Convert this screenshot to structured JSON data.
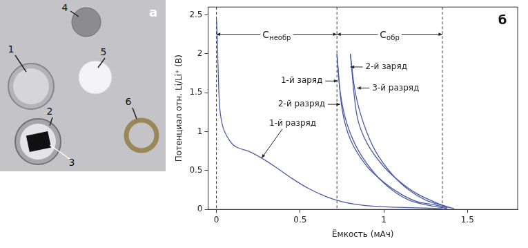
{
  "photo": {
    "letter": "a",
    "labels": [
      "1",
      "2",
      "3",
      "4",
      "5",
      "6"
    ]
  },
  "chart_data": {
    "type": "line",
    "panel_label": "б",
    "x_label": "Ёмкость (мАч)",
    "y_label": "Потенциал отн. Li/Li⁺ (В)",
    "xlim": [
      -0.05,
      1.8
    ],
    "xticks": [
      0,
      0.5,
      1,
      1.5
    ],
    "ylim": [
      0,
      2.6
    ],
    "yticks": [
      0,
      0.5,
      1,
      1.5,
      2,
      2.5
    ],
    "grid": false,
    "color": "#4b5ba6",
    "series": [
      {
        "x": [
          0,
          0.005,
          0.01,
          0.02,
          0.04,
          0.08,
          0.12,
          0.2,
          0.27,
          0.35,
          0.45,
          0.55,
          0.65,
          0.75,
          0.85,
          0.95,
          1.05,
          1.2,
          1.35
        ],
        "values": [
          2.45,
          2.2,
          1.8,
          1.3,
          1.05,
          0.88,
          0.8,
          0.74,
          0.66,
          0.55,
          0.4,
          0.27,
          0.17,
          0.1,
          0.06,
          0.04,
          0.03,
          0.02,
          0.01
        ]
      },
      {
        "x": [
          1.38,
          1.3,
          1.2,
          1.1,
          1.0,
          0.9,
          0.8,
          0.75,
          0.72
        ],
        "values": [
          0.02,
          0.06,
          0.1,
          0.2,
          0.35,
          0.55,
          0.9,
          1.3,
          2.0
        ]
      },
      {
        "x": [
          0.72,
          0.74,
          0.78,
          0.85,
          0.95,
          1.05,
          1.15,
          1.25,
          1.38
        ],
        "values": [
          2.0,
          1.5,
          1.1,
          0.75,
          0.45,
          0.25,
          0.12,
          0.06,
          0.01
        ]
      },
      {
        "x": [
          1.4,
          1.32,
          1.2,
          1.1,
          1.0,
          0.9,
          0.84,
          0.8
        ],
        "values": [
          0.02,
          0.08,
          0.2,
          0.35,
          0.55,
          0.85,
          1.2,
          2.0
        ]
      },
      {
        "x": [
          0.8,
          0.83,
          0.88,
          0.95,
          1.05,
          1.15,
          1.25,
          1.35,
          1.42
        ],
        "values": [
          2.0,
          1.5,
          1.1,
          0.75,
          0.45,
          0.25,
          0.12,
          0.05,
          0.01
        ]
      }
    ],
    "vlines": [
      0,
      0.72,
      1.35
    ],
    "ranges": [
      {
        "symbol": "C",
        "subscript": "необр",
        "from": 0,
        "to": 0.72,
        "y": 2.25
      },
      {
        "symbol": "C",
        "subscript": "обр",
        "from": 0.72,
        "to": 1.35,
        "y": 2.25
      }
    ],
    "annotations": [
      {
        "text": "1-й разряд",
        "x": 0.27,
        "y": 0.66
      },
      {
        "text": "1-й заряд",
        "x": 0.725,
        "y": 1.65
      },
      {
        "text": "2-й разряд",
        "x": 0.74,
        "y": 1.35
      },
      {
        "text": "2-й заряд",
        "x": 0.8,
        "y": 1.83
      },
      {
        "text": "3-й разряд",
        "x": 0.84,
        "y": 1.56
      }
    ]
  }
}
